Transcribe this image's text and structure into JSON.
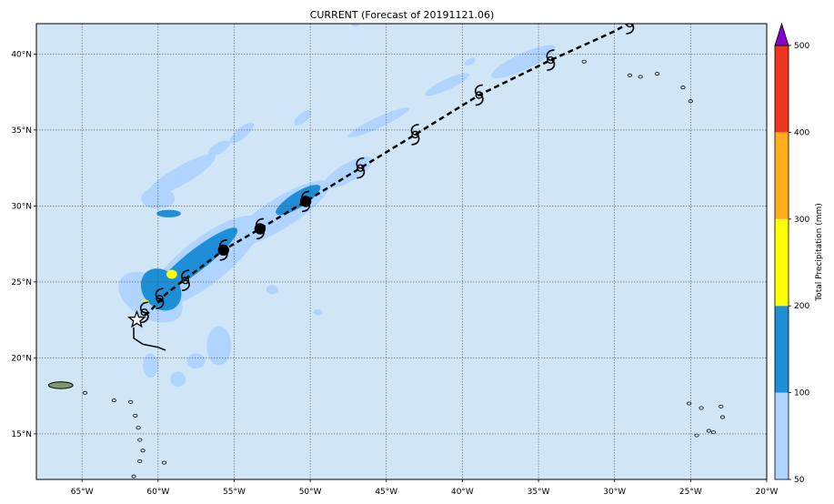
{
  "chart_data": {
    "type": "map",
    "title": "CURRENT (Forecast of 20191121.06)",
    "colorbar": {
      "label": "Total Precipitation (mm)",
      "levels": [
        50,
        100,
        200,
        300,
        400,
        500
      ],
      "tick_labels": [
        "50",
        "100",
        "200",
        "300",
        "400",
        "500"
      ],
      "colors": [
        "#aed4ff",
        "#1e8fd6",
        "#ffff00",
        "#ffad1a",
        "#ee3520"
      ],
      "extend_color": "#8800cc"
    },
    "colors": {
      "ocean": "#d0e6f6",
      "rain_light": "#aed4ff",
      "rain_medium": "#1e8fd6",
      "rain_heavy": "#ffff00",
      "track": "#000000"
    },
    "x_axis": {
      "range": [
        -68,
        -20
      ],
      "ticks": [
        -65,
        -60,
        -55,
        -50,
        -45,
        -40,
        -35,
        -30,
        -25,
        -20
      ],
      "tick_labels": [
        "65°W",
        "60°W",
        "55°W",
        "50°W",
        "45°W",
        "40°W",
        "35°W",
        "30°W",
        "25°W",
        "20°W"
      ]
    },
    "y_axis": {
      "range": [
        12,
        42
      ],
      "ticks": [
        15,
        20,
        25,
        30,
        35,
        40
      ],
      "tick_labels": [
        "15°N",
        "20°N",
        "25°N",
        "30°N",
        "35°N",
        "40°N"
      ]
    },
    "grid": true,
    "track_observed": [
      {
        "lon": -61.6,
        "lat": 22.0
      },
      {
        "lon": -61.6,
        "lat": 21.3
      },
      {
        "lon": -61.0,
        "lat": 20.9
      },
      {
        "lon": -60.0,
        "lat": 20.7
      },
      {
        "lon": -59.5,
        "lat": 20.5
      }
    ],
    "track_forecast": [
      {
        "lon": -61.4,
        "lat": 22.5
      },
      {
        "lon": -60.6,
        "lat": 23.0
      },
      {
        "lon": -59.5,
        "lat": 24.2
      },
      {
        "lon": -57.8,
        "lat": 25.5
      },
      {
        "lon": -55.7,
        "lat": 27.1
      },
      {
        "lon": -53.3,
        "lat": 28.5
      },
      {
        "lon": -50.3,
        "lat": 30.3
      },
      {
        "lon": -46.7,
        "lat": 32.5
      },
      {
        "lon": -43.1,
        "lat": 34.7
      },
      {
        "lon": -38.9,
        "lat": 37.3
      },
      {
        "lon": -34.2,
        "lat": 39.6
      },
      {
        "lon": -30.0,
        "lat": 41.5
      },
      {
        "lon": -28.8,
        "lat": 42.2
      }
    ],
    "storm_symbols": [
      {
        "lon": -60.9,
        "lat": 23.0,
        "kind": "depression"
      },
      {
        "lon": -59.9,
        "lat": 23.9,
        "kind": "depression"
      },
      {
        "lon": -58.2,
        "lat": 25.1,
        "kind": "depression"
      },
      {
        "lon": -55.7,
        "lat": 27.1,
        "kind": "dot"
      },
      {
        "lon": -53.3,
        "lat": 28.5,
        "kind": "dot"
      },
      {
        "lon": -50.3,
        "lat": 30.3,
        "kind": "dot"
      },
      {
        "lon": -46.7,
        "lat": 32.5,
        "kind": "depression"
      },
      {
        "lon": -43.1,
        "lat": 34.7,
        "kind": "depression"
      },
      {
        "lon": -38.9,
        "lat": 37.3,
        "kind": "depression"
      },
      {
        "lon": -34.2,
        "lat": 39.6,
        "kind": "depression"
      },
      {
        "lon": -29.0,
        "lat": 42.0,
        "kind": "depression"
      }
    ],
    "current_position": {
      "lon": -61.4,
      "lat": 22.5
    },
    "precip_light": [
      {
        "lon": -60.5,
        "lat": 24.0,
        "rx": 1.4,
        "ry": 2.3,
        "rot": -60
      },
      {
        "lon": -57.0,
        "lat": 26.3,
        "rx": 4.6,
        "ry": 1.5,
        "rot": -38
      },
      {
        "lon": -52.0,
        "lat": 29.5,
        "rx": 3.8,
        "ry": 1.0,
        "rot": -32
      },
      {
        "lon": -47.5,
        "lat": 32.2,
        "rx": 1.8,
        "ry": 0.6,
        "rot": -30
      },
      {
        "lon": -60.0,
        "lat": 30.5,
        "rx": 1.1,
        "ry": 0.7,
        "rot": 0
      },
      {
        "lon": -58.5,
        "lat": 32.0,
        "rx": 2.6,
        "ry": 0.6,
        "rot": -30
      },
      {
        "lon": -56.0,
        "lat": 33.8,
        "rx": 0.8,
        "ry": 0.35,
        "rot": -30
      },
      {
        "lon": -54.5,
        "lat": 34.8,
        "rx": 1.0,
        "ry": 0.35,
        "rot": -40
      },
      {
        "lon": -50.5,
        "lat": 35.8,
        "rx": 0.7,
        "ry": 0.3,
        "rot": -40
      },
      {
        "lon": -45.5,
        "lat": 35.5,
        "rx": 2.2,
        "ry": 0.35,
        "rot": -25
      },
      {
        "lon": -41.0,
        "lat": 38.0,
        "rx": 1.6,
        "ry": 0.35,
        "rot": -25
      },
      {
        "lon": -36.0,
        "lat": 39.5,
        "rx": 2.3,
        "ry": 0.55,
        "rot": -25
      },
      {
        "lon": -56.0,
        "lat": 20.8,
        "rx": 0.8,
        "ry": 1.3,
        "rot": 0
      },
      {
        "lon": -57.5,
        "lat": 19.8,
        "rx": 0.6,
        "ry": 0.5,
        "rot": 0
      },
      {
        "lon": -60.5,
        "lat": 19.5,
        "rx": 0.5,
        "ry": 0.8,
        "rot": 0
      },
      {
        "lon": -58.7,
        "lat": 18.6,
        "rx": 0.5,
        "ry": 0.5,
        "rot": 0
      },
      {
        "lon": -52.5,
        "lat": 24.5,
        "rx": 0.4,
        "ry": 0.3,
        "rot": 0
      },
      {
        "lon": -49.5,
        "lat": 23.0,
        "rx": 0.3,
        "ry": 0.2,
        "rot": 0
      },
      {
        "lon": -39.5,
        "lat": 39.5,
        "rx": 0.4,
        "ry": 0.2,
        "rot": -30
      },
      {
        "lon": -47.0,
        "lat": 42.0,
        "rx": 0.3,
        "ry": 0.2,
        "rot": 0
      }
    ],
    "precip_medium": [
      {
        "lon": -59.8,
        "lat": 24.5,
        "rx": 1.2,
        "ry": 1.5,
        "rot": -40
      },
      {
        "lon": -57.5,
        "lat": 26.4,
        "rx": 3.4,
        "ry": 0.7,
        "rot": -38
      },
      {
        "lon": -50.8,
        "lat": 30.4,
        "rx": 1.7,
        "ry": 0.5,
        "rot": -32
      },
      {
        "lon": -59.3,
        "lat": 29.5,
        "rx": 0.8,
        "ry": 0.25,
        "rot": 0
      }
    ],
    "precip_heavy": [
      {
        "lon": -59.1,
        "lat": 25.5,
        "rx": 0.35,
        "ry": 0.3,
        "rot": 0
      },
      {
        "lon": -60.8,
        "lat": 23.7,
        "rx": 0.18,
        "ry": 0.12,
        "rot": 0
      }
    ],
    "land": [
      {
        "lon": -66.4,
        "lat": 18.2,
        "rx": 0.8,
        "ry": 0.22,
        "rot": 0
      }
    ],
    "islands": [
      {
        "lon": -64.8,
        "lat": 17.7
      },
      {
        "lon": -62.9,
        "lat": 17.2
      },
      {
        "lon": -61.8,
        "lat": 17.1
      },
      {
        "lon": -61.5,
        "lat": 16.2
      },
      {
        "lon": -61.3,
        "lat": 15.4
      },
      {
        "lon": -61.2,
        "lat": 14.6
      },
      {
        "lon": -61.0,
        "lat": 13.9
      },
      {
        "lon": -61.2,
        "lat": 13.2
      },
      {
        "lon": -59.6,
        "lat": 13.1
      },
      {
        "lon": -61.6,
        "lat": 12.2
      },
      {
        "lon": -32.0,
        "lat": 39.5
      },
      {
        "lon": -29.0,
        "lat": 38.6
      },
      {
        "lon": -28.3,
        "lat": 38.5
      },
      {
        "lon": -27.2,
        "lat": 38.7
      },
      {
        "lon": -25.5,
        "lat": 37.8
      },
      {
        "lon": -25.0,
        "lat": 36.9
      },
      {
        "lon": -25.1,
        "lat": 17.0
      },
      {
        "lon": -24.3,
        "lat": 16.7
      },
      {
        "lon": -23.0,
        "lat": 16.8
      },
      {
        "lon": -22.9,
        "lat": 16.1
      },
      {
        "lon": -23.5,
        "lat": 15.1
      },
      {
        "lon": -24.6,
        "lat": 14.9
      },
      {
        "lon": -23.8,
        "lat": 15.2
      }
    ]
  }
}
